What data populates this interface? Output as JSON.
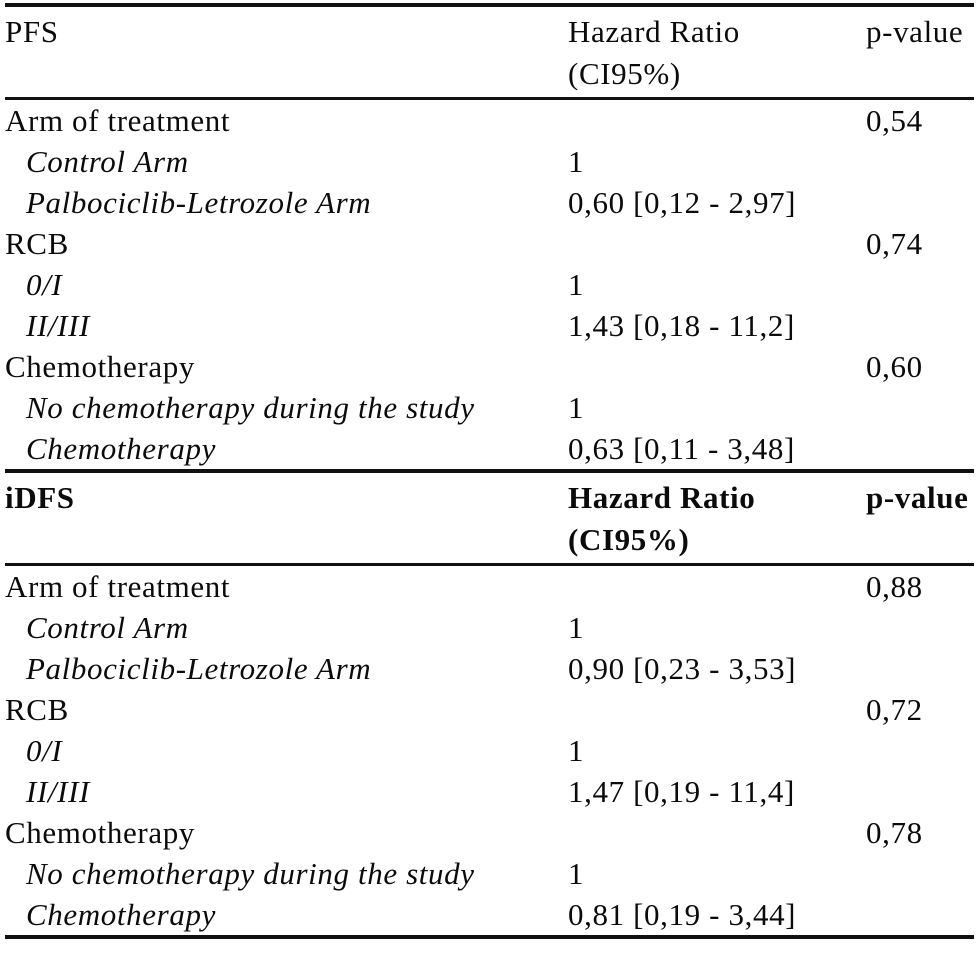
{
  "table": {
    "colors": {
      "text": "#0b0b0b",
      "rule": "#111111",
      "background": "#ffffff"
    },
    "sections": [
      {
        "id": "pfs",
        "bold_header": false,
        "header": {
          "outcome": "PFS",
          "hr_line1": "Hazard Ratio",
          "hr_line2": "(CI95%)",
          "pvalue": "p-value"
        },
        "rows": [
          {
            "label": "Arm of treatment",
            "italic": false,
            "hazard_ratio": "",
            "p_value": "0,54"
          },
          {
            "label": "Control Arm",
            "italic": true,
            "hazard_ratio": "1",
            "p_value": ""
          },
          {
            "label": "Palbociclib-Letrozole Arm",
            "italic": true,
            "hazard_ratio": "0,60 [0,12 - 2,97]",
            "p_value": ""
          },
          {
            "label": "RCB",
            "italic": false,
            "hazard_ratio": "",
            "p_value": "0,74"
          },
          {
            "label": "0/I",
            "italic": true,
            "hazard_ratio": "1",
            "p_value": ""
          },
          {
            "label": "II/III",
            "italic": true,
            "hazard_ratio": "1,43 [0,18 - 11,2]",
            "p_value": ""
          },
          {
            "label": "Chemotherapy",
            "italic": false,
            "hazard_ratio": "",
            "p_value": "0,60"
          },
          {
            "label": "No chemotherapy during the study",
            "italic": true,
            "hazard_ratio": "1",
            "p_value": ""
          },
          {
            "label": "Chemotherapy",
            "italic": true,
            "hazard_ratio": "0,63 [0,11 - 3,48]",
            "p_value": ""
          }
        ]
      },
      {
        "id": "idfs",
        "bold_header": true,
        "header": {
          "outcome": "iDFS",
          "hr_line1": "Hazard Ratio",
          "hr_line2": "(CI95%)",
          "pvalue": "p-value"
        },
        "rows": [
          {
            "label": "Arm of treatment",
            "italic": false,
            "hazard_ratio": "",
            "p_value": "0,88"
          },
          {
            "label": "Control Arm",
            "italic": true,
            "hazard_ratio": "1",
            "p_value": ""
          },
          {
            "label": "Palbociclib-Letrozole Arm",
            "italic": true,
            "hazard_ratio": "0,90 [0,23 - 3,53]",
            "p_value": ""
          },
          {
            "label": "RCB",
            "italic": false,
            "hazard_ratio": "",
            "p_value": "0,72"
          },
          {
            "label": "0/I",
            "italic": true,
            "hazard_ratio": "1",
            "p_value": ""
          },
          {
            "label": "II/III",
            "italic": true,
            "hazard_ratio": "1,47 [0,19 - 11,4]",
            "p_value": ""
          },
          {
            "label": "Chemotherapy",
            "italic": false,
            "hazard_ratio": "",
            "p_value": "0,78"
          },
          {
            "label": "No chemotherapy during the study",
            "italic": true,
            "hazard_ratio": "1",
            "p_value": ""
          },
          {
            "label": "Chemotherapy",
            "italic": true,
            "hazard_ratio": "0,81 [0,19 - 3,44]",
            "p_value": ""
          }
        ]
      }
    ]
  }
}
